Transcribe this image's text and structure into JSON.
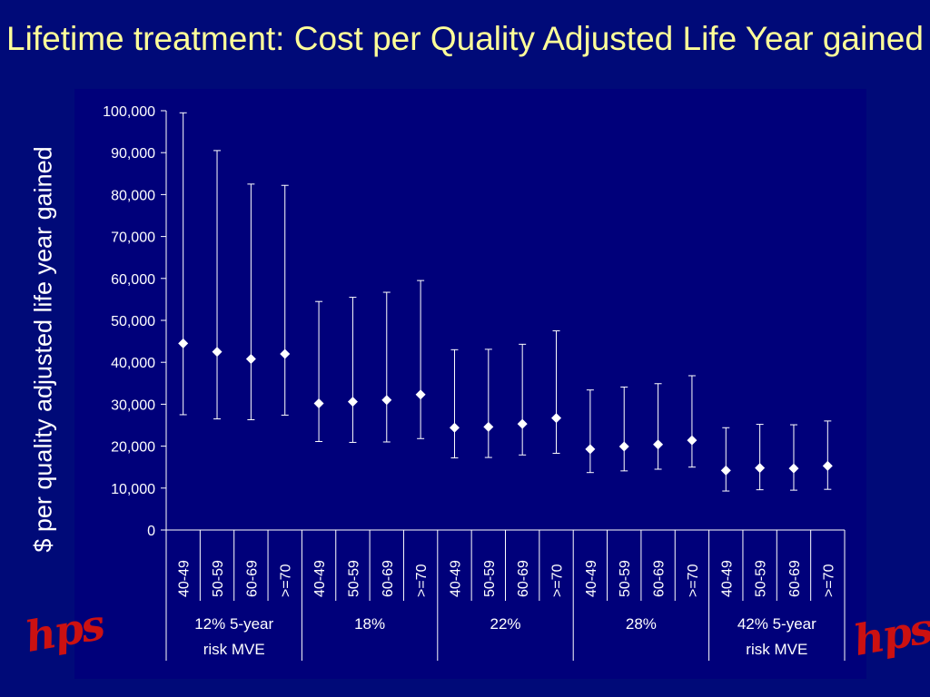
{
  "slide": {
    "title": "Lifetime treatment: Cost per Quality Adjusted Life Year gained",
    "logo_text": "hps"
  },
  "chart_data": {
    "type": "scatter",
    "title": "Lifetime treatment: Cost per Quality Adjusted Life Year gained",
    "ylabel": "$ per quality adjusted life year gained",
    "ylim": [
      0,
      100000
    ],
    "yticks": [
      0,
      10000,
      20000,
      30000,
      40000,
      50000,
      60000,
      70000,
      80000,
      90000,
      100000
    ],
    "ytick_labels": [
      "0",
      "10,000",
      "20,000",
      "30,000",
      "40,000",
      "50,000",
      "60,000",
      "70,000",
      "80,000",
      "90,000",
      "100,000"
    ],
    "categories": [
      "40-49",
      "50-59",
      "60-69",
      ">=70",
      "40-49",
      "50-59",
      "60-69",
      ">=70",
      "40-49",
      "50-59",
      "60-69",
      ">=70",
      "40-49",
      "50-59",
      "60-69",
      ">=70",
      "40-49",
      "50-59",
      "60-69",
      ">=70"
    ],
    "groups": [
      {
        "label_line1": "12% 5-year",
        "label_line2": "risk MVE",
        "size": 4
      },
      {
        "label_line1": "18%",
        "label_line2": "",
        "size": 4
      },
      {
        "label_line1": "22%",
        "label_line2": "",
        "size": 4
      },
      {
        "label_line1": "28%",
        "label_line2": "",
        "size": 4
      },
      {
        "label_line1": "42% 5-year",
        "label_line2": "risk MVE",
        "size": 4
      }
    ],
    "values": [
      44500,
      42500,
      40800,
      42000,
      30200,
      30600,
      31000,
      32300,
      24400,
      24600,
      25300,
      26700,
      19300,
      19900,
      20400,
      21400,
      14200,
      14800,
      14700,
      15300
    ],
    "lower": [
      27500,
      26500,
      26300,
      27400,
      21100,
      20900,
      21000,
      21800,
      17200,
      17300,
      17900,
      18300,
      13700,
      14100,
      14500,
      15000,
      9300,
      9600,
      9500,
      9700
    ],
    "upper": [
      99500,
      90500,
      82500,
      82200,
      54500,
      55500,
      56700,
      59500,
      43000,
      43100,
      44300,
      47500,
      33400,
      34100,
      34900,
      36800,
      24400,
      25200,
      25100,
      26000
    ],
    "grid": false,
    "legend": "none",
    "colors": {
      "background": "#000a78",
      "plot_area": "#00007a",
      "marks": "#ffffff",
      "title": "#ffff99",
      "logo": "#cc1111"
    }
  }
}
